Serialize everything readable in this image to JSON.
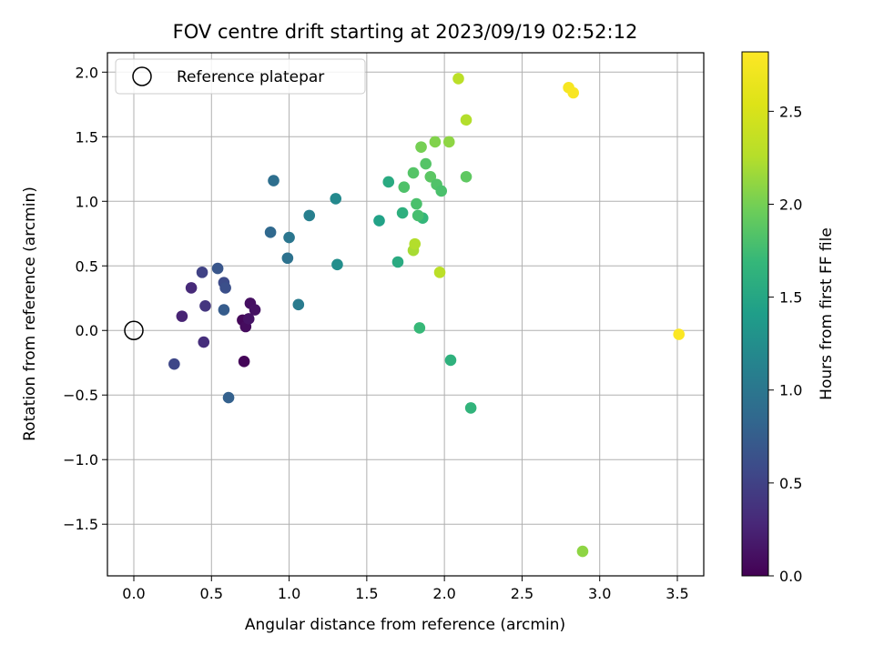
{
  "chart_data": {
    "type": "scatter",
    "title": "FOV centre drift starting at 2023/09/19 02:52:12",
    "xlabel": "Angular distance from reference (arcmin)",
    "ylabel": "Rotation from reference (arcmin)",
    "xlim": [
      -0.17,
      3.67
    ],
    "ylim": [
      -1.9,
      2.15
    ],
    "x_ticks": [
      0.0,
      0.5,
      1.0,
      1.5,
      2.0,
      2.5,
      3.0,
      3.5
    ],
    "x_tick_labels": [
      "0.0",
      "0.5",
      "1.0",
      "1.5",
      "2.0",
      "2.5",
      "3.0",
      "3.5"
    ],
    "y_ticks": [
      -1.5,
      -1.0,
      -0.5,
      0.0,
      0.5,
      1.0,
      1.5,
      2.0
    ],
    "y_tick_labels": [
      "−1.5",
      "−1.0",
      "−0.5",
      "0.0",
      "0.5",
      "1.0",
      "1.5",
      "2.0"
    ],
    "grid": true,
    "legend": {
      "placement": "top-left",
      "entries": [
        "Reference platepar"
      ]
    },
    "reference_point": {
      "x": 0.0,
      "y": 0.0,
      "label": "Reference platepar"
    },
    "colorbar": {
      "label": "Hours from first FF file",
      "colormap": "viridis",
      "range": [
        0.0,
        2.82
      ],
      "ticks": [
        0.0,
        0.5,
        1.0,
        1.5,
        2.0,
        2.5
      ],
      "tick_labels": [
        "0.0",
        "0.5",
        "1.0",
        "1.5",
        "2.0",
        "2.5"
      ]
    },
    "points": [
      {
        "x": 0.7,
        "y": 0.08,
        "c": 0.05
      },
      {
        "x": 0.72,
        "y": 0.03,
        "c": 0.08
      },
      {
        "x": 0.75,
        "y": 0.21,
        "c": 0.1
      },
      {
        "x": 0.78,
        "y": 0.16,
        "c": 0.12
      },
      {
        "x": 0.74,
        "y": 0.09,
        "c": 0.13
      },
      {
        "x": 0.71,
        "y": -0.24,
        "c": 0.03
      },
      {
        "x": 0.31,
        "y": 0.11,
        "c": 0.25
      },
      {
        "x": 0.37,
        "y": 0.33,
        "c": 0.3
      },
      {
        "x": 0.45,
        "y": -0.09,
        "c": 0.33
      },
      {
        "x": 0.46,
        "y": 0.19,
        "c": 0.4
      },
      {
        "x": 0.44,
        "y": 0.45,
        "c": 0.5
      },
      {
        "x": 0.26,
        "y": -0.26,
        "c": 0.55
      },
      {
        "x": 0.58,
        "y": 0.37,
        "c": 0.58
      },
      {
        "x": 0.59,
        "y": 0.33,
        "c": 0.62
      },
      {
        "x": 0.54,
        "y": 0.48,
        "c": 0.68
      },
      {
        "x": 0.58,
        "y": 0.16,
        "c": 0.74
      },
      {
        "x": 0.61,
        "y": -0.52,
        "c": 0.78
      },
      {
        "x": 0.88,
        "y": 0.76,
        "c": 0.86
      },
      {
        "x": 0.9,
        "y": 1.16,
        "c": 0.92
      },
      {
        "x": 0.99,
        "y": 0.56,
        "c": 0.95
      },
      {
        "x": 1.0,
        "y": 0.72,
        "c": 1.0
      },
      {
        "x": 1.06,
        "y": 0.2,
        "c": 1.05
      },
      {
        "x": 1.13,
        "y": 0.89,
        "c": 1.1
      },
      {
        "x": 1.3,
        "y": 1.02,
        "c": 1.2
      },
      {
        "x": 1.31,
        "y": 0.51,
        "c": 1.25
      },
      {
        "x": 1.58,
        "y": 0.85,
        "c": 1.45
      },
      {
        "x": 1.64,
        "y": 1.15,
        "c": 1.55
      },
      {
        "x": 1.7,
        "y": 0.53,
        "c": 1.55
      },
      {
        "x": 1.73,
        "y": 0.91,
        "c": 1.6
      },
      {
        "x": 1.84,
        "y": 0.02,
        "c": 1.7
      },
      {
        "x": 1.86,
        "y": 0.87,
        "c": 1.68
      },
      {
        "x": 2.04,
        "y": -0.23,
        "c": 1.62
      },
      {
        "x": 2.17,
        "y": -0.6,
        "c": 1.65
      },
      {
        "x": 1.74,
        "y": 1.11,
        "c": 1.82
      },
      {
        "x": 1.8,
        "y": 1.22,
        "c": 1.85
      },
      {
        "x": 1.82,
        "y": 0.98,
        "c": 1.8
      },
      {
        "x": 1.83,
        "y": 0.89,
        "c": 1.78
      },
      {
        "x": 1.88,
        "y": 1.29,
        "c": 1.85
      },
      {
        "x": 1.91,
        "y": 1.19,
        "c": 1.88
      },
      {
        "x": 1.95,
        "y": 1.13,
        "c": 1.83
      },
      {
        "x": 1.98,
        "y": 1.08,
        "c": 1.8
      },
      {
        "x": 2.14,
        "y": 1.19,
        "c": 1.9
      },
      {
        "x": 1.85,
        "y": 1.42,
        "c": 2.0
      },
      {
        "x": 1.94,
        "y": 1.46,
        "c": 2.05
      },
      {
        "x": 2.03,
        "y": 1.46,
        "c": 2.1
      },
      {
        "x": 1.8,
        "y": 0.62,
        "c": 2.2
      },
      {
        "x": 1.81,
        "y": 0.67,
        "c": 2.25
      },
      {
        "x": 1.97,
        "y": 0.45,
        "c": 2.3
      },
      {
        "x": 2.14,
        "y": 1.63,
        "c": 2.25
      },
      {
        "x": 2.09,
        "y": 1.95,
        "c": 2.3
      },
      {
        "x": 2.89,
        "y": -1.71,
        "c": 2.1
      },
      {
        "x": 2.8,
        "y": 1.88,
        "c": 2.76
      },
      {
        "x": 2.83,
        "y": 1.84,
        "c": 2.78
      },
      {
        "x": 3.51,
        "y": -0.03,
        "c": 2.8
      }
    ]
  }
}
